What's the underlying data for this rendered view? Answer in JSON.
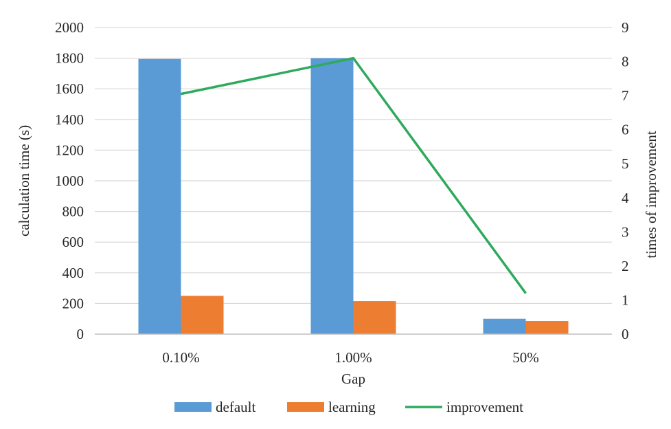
{
  "chart_data": {
    "type": "bar",
    "categories": [
      "0.10%",
      "1.00%",
      "50%"
    ],
    "series": [
      {
        "name": "default",
        "kind": "bar",
        "axis": "left",
        "values": [
          1795,
          1800,
          100
        ],
        "color": "#5b9bd5"
      },
      {
        "name": "learning",
        "kind": "bar",
        "axis": "left",
        "values": [
          250,
          215,
          85
        ],
        "color": "#ed7d31"
      },
      {
        "name": "improvement",
        "kind": "line",
        "axis": "right",
        "values": [
          7.05,
          8.1,
          1.2
        ],
        "color": "#2eaa5c"
      }
    ],
    "xlabel": "Gap",
    "ylabel": "calculation time (s)",
    "y2label": "times of improvement",
    "ylim": [
      0,
      2000
    ],
    "yticks": [
      "0",
      "200",
      "400",
      "600",
      "800",
      "1000",
      "1200",
      "1400",
      "1600",
      "1800",
      "2000"
    ],
    "y2lim": [
      0,
      9
    ],
    "y2ticks": [
      "0",
      "1",
      "2",
      "3",
      "4",
      "5",
      "6",
      "7",
      "8",
      "9"
    ],
    "grid": true,
    "legend_position": "bottom"
  }
}
